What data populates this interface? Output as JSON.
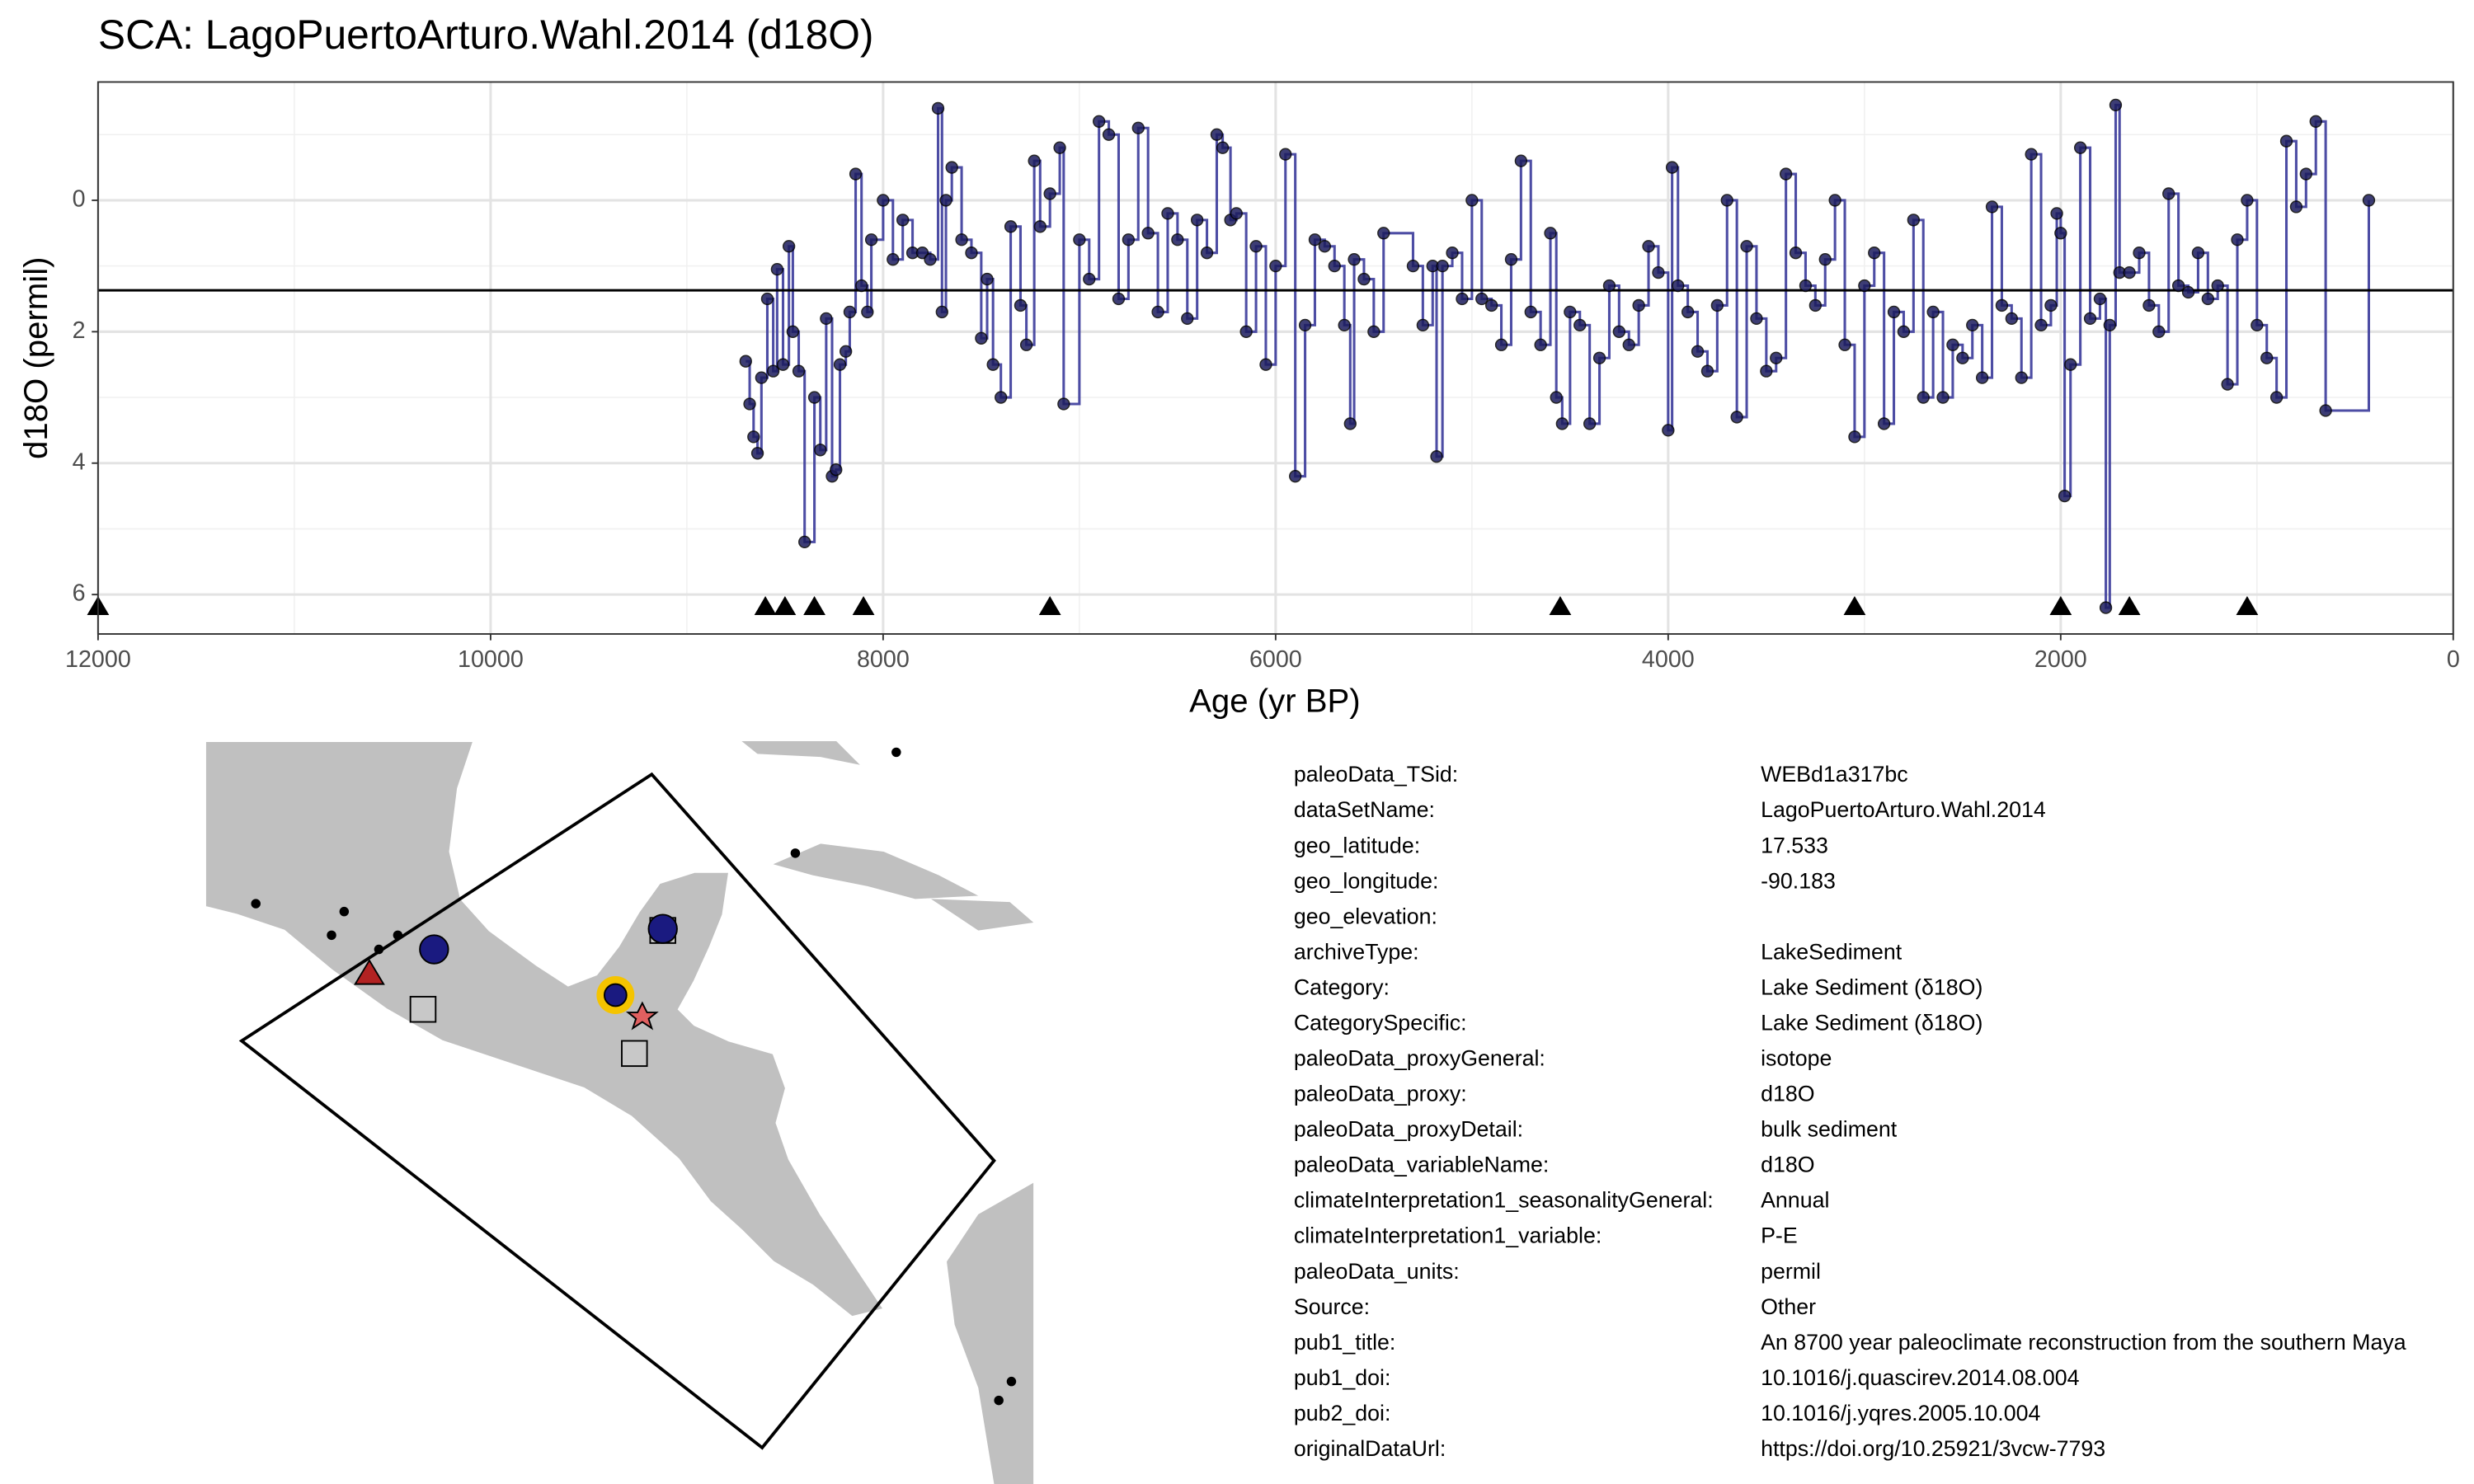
{
  "chart_data": {
    "type": "step",
    "title": "SCA: LagoPuertoArturo.Wahl.2014 (d18O)",
    "x_label": "Age (yr BP)",
    "y_label": "d18O (permil)",
    "xlim": [
      12000,
      0
    ],
    "xticks": [
      12000,
      10000,
      8000,
      6000,
      4000,
      2000,
      0
    ],
    "ylim": [
      6.6,
      -1.8
    ],
    "yticks": [
      0,
      2,
      4,
      6
    ],
    "y_reversed": true,
    "grid": true,
    "color": "#3a3a9a",
    "point_color": "#1c1c5e",
    "reference_line": 1.37,
    "control_points": [
      12000,
      8600,
      8500,
      8350,
      8100,
      7150,
      4550,
      3050,
      2000,
      1650,
      1050
    ],
    "x": [
      8700,
      8680,
      8660,
      8640,
      8620,
      8590,
      8560,
      8540,
      8510,
      8480,
      8460,
      8430,
      8400,
      8350,
      8320,
      8290,
      8260,
      8240,
      8220,
      8190,
      8170,
      8140,
      8110,
      8080,
      8060,
      8000,
      7950,
      7900,
      7850,
      7800,
      7760,
      7720,
      7700,
      7680,
      7650,
      7600,
      7550,
      7500,
      7470,
      7440,
      7400,
      7350,
      7300,
      7270,
      7230,
      7200,
      7150,
      7100,
      7080,
      7000,
      6950,
      6900,
      6850,
      6800,
      6750,
      6700,
      6650,
      6600,
      6550,
      6500,
      6450,
      6400,
      6350,
      6300,
      6270,
      6230,
      6200,
      6150,
      6100,
      6050,
      6000,
      5950,
      5900,
      5850,
      5800,
      5750,
      5700,
      5650,
      5620,
      5600,
      5550,
      5500,
      5450,
      5300,
      5250,
      5200,
      5180,
      5150,
      5100,
      5050,
      5000,
      4950,
      4900,
      4850,
      4800,
      4750,
      4700,
      4650,
      4600,
      4570,
      4540,
      4500,
      4450,
      4400,
      4350,
      4300,
      4250,
      4200,
      4150,
      4100,
      4050,
      4000,
      3980,
      3950,
      3900,
      3850,
      3800,
      3750,
      3700,
      3650,
      3600,
      3550,
      3500,
      3450,
      3400,
      3350,
      3300,
      3250,
      3200,
      3150,
      3100,
      3050,
      3000,
      2950,
      2900,
      2850,
      2800,
      2750,
      2700,
      2650,
      2600,
      2550,
      2500,
      2450,
      2400,
      2350,
      2300,
      2250,
      2200,
      2150,
      2100,
      2050,
      2020,
      2000,
      1980,
      1950,
      1900,
      1850,
      1800,
      1770,
      1750,
      1720,
      1700,
      1650,
      1600,
      1550,
      1500,
      1450,
      1400,
      1350,
      1300,
      1250,
      1200,
      1150,
      1100,
      1050,
      1000,
      950,
      900,
      850,
      800,
      750,
      700,
      650,
      430
    ],
    "values": [
      2.45,
      3.1,
      3.6,
      3.85,
      2.7,
      1.5,
      2.6,
      1.05,
      2.5,
      0.7,
      2.0,
      2.6,
      5.2,
      3.0,
      3.8,
      1.8,
      4.2,
      4.1,
      2.5,
      2.3,
      1.7,
      -0.4,
      1.3,
      1.7,
      0.6,
      0.0,
      0.9,
      0.3,
      0.8,
      0.8,
      0.9,
      -1.4,
      1.7,
      0.0,
      -0.5,
      0.6,
      0.8,
      2.1,
      1.2,
      2.5,
      3.0,
      0.4,
      1.6,
      2.2,
      -0.6,
      0.4,
      -0.1,
      -0.8,
      3.1,
      0.6,
      1.2,
      -1.2,
      -1.0,
      1.5,
      0.6,
      -1.1,
      0.5,
      1.7,
      0.2,
      0.6,
      1.8,
      0.3,
      0.8,
      -1.0,
      -0.8,
      0.3,
      0.2,
      2.0,
      0.7,
      2.5,
      1.0,
      -0.7,
      4.2,
      1.9,
      0.6,
      0.7,
      1.0,
      1.9,
      3.4,
      0.9,
      1.2,
      2.0,
      0.5,
      1.0,
      1.9,
      1.0,
      3.9,
      1.0,
      0.8,
      1.5,
      0.0,
      1.5,
      1.6,
      2.2,
      0.9,
      -0.6,
      1.7,
      2.2,
      0.5,
      3.0,
      3.4,
      1.7,
      1.9,
      3.4,
      2.4,
      1.3,
      2.0,
      2.2,
      1.6,
      0.7,
      1.1,
      3.5,
      -0.5,
      1.3,
      1.7,
      2.3,
      2.6,
      1.6,
      0.0,
      3.3,
      0.7,
      1.8,
      2.6,
      2.4,
      -0.4,
      0.8,
      1.3,
      1.6,
      0.9,
      0.0,
      2.2,
      3.6,
      1.3,
      0.8,
      3.4,
      1.7,
      2.0,
      0.3,
      3.0,
      1.7,
      3.0,
      2.2,
      2.4,
      1.9,
      2.7,
      0.1,
      1.6,
      1.8,
      2.7,
      -0.7,
      1.9,
      1.6,
      0.2,
      0.5,
      4.5,
      2.5,
      -0.8,
      1.8,
      1.5,
      6.2,
      1.9,
      -1.45,
      1.1,
      1.1,
      0.8,
      1.6,
      2.0,
      -0.1,
      1.3,
      1.4,
      0.8,
      1.5,
      1.3,
      2.8,
      0.6,
      0.0,
      1.9,
      2.4,
      3.0,
      -0.9,
      0.1,
      -0.4,
      -1.2,
      3.2,
      0.0
    ]
  },
  "metadata": {
    "rows": [
      [
        "paleoData_TSid:",
        "WEBd1a317bc"
      ],
      [
        "dataSetName:",
        "LagoPuertoArturo.Wahl.2014"
      ],
      [
        "geo_latitude:",
        "17.533"
      ],
      [
        "geo_longitude:",
        "-90.183"
      ],
      [
        "geo_elevation:",
        ""
      ],
      [
        "archiveType:",
        "LakeSediment"
      ],
      [
        "Category:",
        "Lake Sediment (δ18O)"
      ],
      [
        "CategorySpecific:",
        "Lake Sediment (δ18O)"
      ],
      [
        "paleoData_proxyGeneral:",
        "isotope"
      ],
      [
        "paleoData_proxy:",
        "d18O"
      ],
      [
        "paleoData_proxyDetail:",
        "bulk sediment"
      ],
      [
        "paleoData_variableName:",
        "d18O"
      ],
      [
        "climateInterpretation1_seasonalityGeneral:",
        "Annual"
      ],
      [
        "climateInterpretation1_variable:",
        "P-E"
      ],
      [
        "paleoData_units:",
        "permil"
      ],
      [
        "Source:",
        "Other"
      ],
      [
        "pub1_title:",
        "An 8700 year paleoclimate reconstruction from the southern Maya"
      ],
      [
        "pub1_doi:",
        "10.1016/j.quascirev.2014.08.004"
      ],
      [
        "pub2_doi:",
        "10.1016/j.yqres.2005.10.004"
      ],
      [
        "originalDataUrl:",
        "https://doi.org/10.25921/3vcw-7793"
      ]
    ]
  }
}
